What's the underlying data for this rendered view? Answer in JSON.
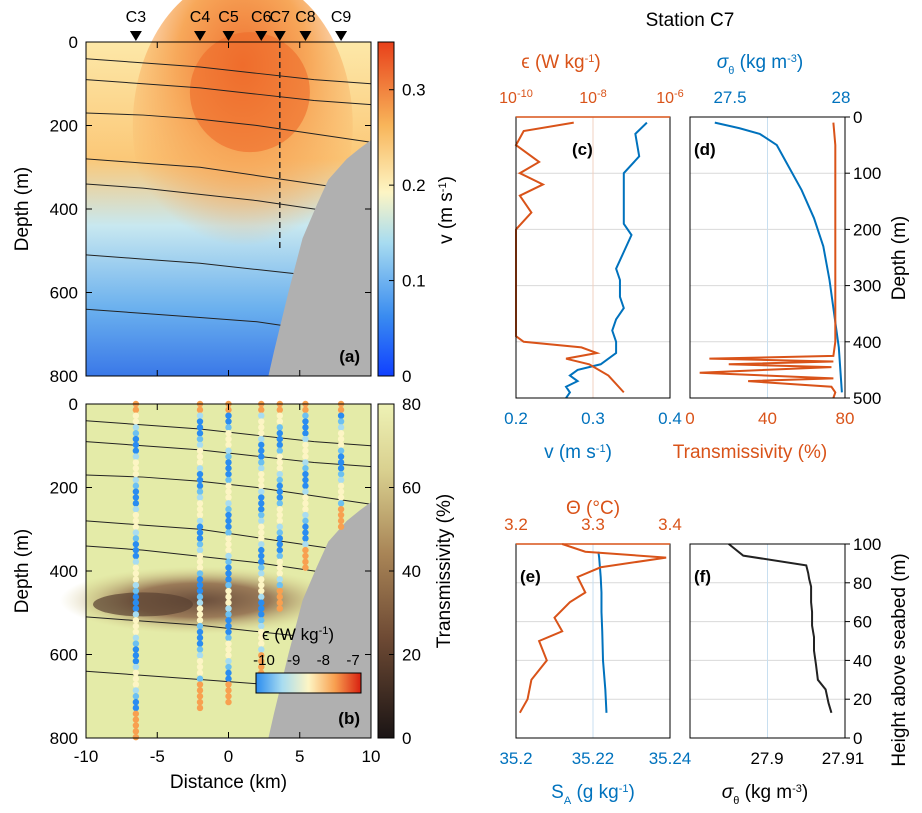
{
  "colors": {
    "orange": "#d95319",
    "blue": "#0072bd",
    "black": "#222222",
    "seabed": "#b0b0b0",
    "grid": "#d9d9d9"
  },
  "stations": [
    "C3",
    "C4",
    "C5",
    "C6",
    "C7",
    "C8",
    "C9"
  ],
  "station_title": "Station C7",
  "chart_data": [
    {
      "id": "a",
      "panel_label": "(a)",
      "type": "heatmap",
      "xlabel": "",
      "ylabel": "Depth (m)",
      "xlim": [
        -10,
        10
      ],
      "ylim": [
        0,
        800
      ],
      "yticks": [
        "0",
        "200",
        "400",
        "600",
        "800"
      ],
      "colorbar": {
        "label": "v (m s",
        "sup": "-1",
        "label_end": ")",
        "range": [
          0,
          0.35
        ],
        "ticks": [
          "0",
          "0.1",
          "0.2",
          "0.3"
        ]
      },
      "station_x_km": [
        -6.5,
        -2,
        0,
        2.3,
        3.6,
        5.4,
        7.9
      ]
    },
    {
      "id": "b",
      "panel_label": "(b)",
      "type": "heatmap",
      "xlabel": "Distance (km)",
      "ylabel": "Depth (m)",
      "xlim": [
        -10,
        10
      ],
      "ylim": [
        0,
        800
      ],
      "xticks": [
        "-10",
        "-5",
        "0",
        "5",
        "10"
      ],
      "yticks": [
        "0",
        "200",
        "400",
        "600",
        "800"
      ],
      "colorbar": {
        "label": "Transmissivity (%)",
        "range": [
          0,
          80
        ],
        "ticks": [
          "0",
          "20",
          "40",
          "60",
          "80"
        ]
      },
      "epsilon_bar": {
        "label": "ϵ (W kg",
        "sup": "-1",
        "label_end": ")",
        "ticks": [
          "-10",
          "-9",
          "-8",
          "-7"
        ],
        "range": [
          -10,
          -7
        ]
      }
    },
    {
      "id": "c",
      "panel_label": "(c)",
      "type": "line",
      "top_label": "ϵ (W kg",
      "top_sup": "-1",
      "top_end": ")",
      "top_ticks": [
        "10",
        "10",
        "10"
      ],
      "top_tick_exp": [
        "-10",
        "-8",
        "-6"
      ],
      "bottom_label": "v (m s",
      "bottom_sup": "-1",
      "bottom_end": ")",
      "bottom_ticks": [
        "0.2",
        "0.3",
        "0.4"
      ],
      "xlim": [
        0.2,
        0.4
      ],
      "ylim": [
        0,
        500
      ],
      "series": [
        {
          "axis": "v",
          "x": [
            0.37,
            0.355,
            0.36,
            0.34,
            0.34,
            0.34,
            0.34,
            0.35,
            0.34,
            0.33,
            0.335,
            0.335,
            0.34,
            0.33,
            0.325,
            0.33,
            0.33,
            0.31,
            0.28,
            0.27,
            0.28,
            0.265,
            0.27,
            0.265
          ],
          "y": [
            10,
            30,
            70,
            100,
            130,
            160,
            190,
            210,
            240,
            270,
            290,
            320,
            340,
            360,
            380,
            400,
            420,
            440,
            450,
            460,
            470,
            480,
            490,
            500
          ]
        },
        {
          "axis": "eps_log10",
          "x": [
            -8.5,
            -9.8,
            -10,
            -9.4,
            -9.9,
            -9.3,
            -9.9,
            -9.6,
            -10,
            -10,
            -10,
            -10,
            -10,
            -10,
            -10,
            -10,
            -9.8,
            -8.3,
            -7.9,
            -8.7,
            -8.1,
            -7.6,
            -7.2
          ],
          "y": [
            10,
            25,
            50,
            80,
            100,
            120,
            140,
            170,
            200,
            240,
            270,
            300,
            330,
            360,
            380,
            390,
            400,
            410,
            420,
            430,
            440,
            460,
            490
          ]
        }
      ]
    },
    {
      "id": "d",
      "panel_label": "(d)",
      "type": "line",
      "title": "Station C7",
      "top_label": "σ",
      "top_sub": "θ",
      "top_end": " (kg m",
      "top_sup": "-3",
      "top_close": ")",
      "top_ticks": [
        "27.5",
        "28"
      ],
      "bottom_label": "Transmissivity (%)",
      "bottom_ticks": [
        "0",
        "40",
        "80"
      ],
      "right_label": "Depth (m)",
      "right_ticks": [
        "0",
        "100",
        "200",
        "300",
        "400",
        "500"
      ],
      "xlim": [
        0,
        80
      ],
      "ylim": [
        0,
        500
      ],
      "series": [
        {
          "axis": "sigma",
          "x": [
            27.16,
            27.32,
            27.45,
            27.56,
            27.62,
            27.72,
            27.8,
            27.86,
            27.9,
            27.93,
            27.96,
            27.98
          ],
          "y": [
            10,
            20,
            30,
            50,
            80,
            130,
            180,
            230,
            290,
            350,
            410,
            490
          ]
        },
        {
          "axis": "trans",
          "x": [
            74,
            75,
            75,
            75,
            75,
            75,
            74,
            10,
            74,
            20,
            73,
            5,
            74,
            30,
            73,
            75,
            74
          ],
          "y": [
            10,
            50,
            150,
            250,
            350,
            400,
            425,
            430,
            435,
            440,
            445,
            455,
            465,
            470,
            480,
            490,
            500
          ]
        }
      ]
    },
    {
      "id": "e",
      "panel_label": "(e)",
      "type": "line",
      "top_label": "Θ (°C)",
      "top_ticks": [
        "3.2",
        "3.3",
        "3.4"
      ],
      "bottom_label": "S",
      "bottom_sub": "A",
      "bottom_end": " (g kg",
      "bottom_sup": "-1",
      "bottom_close": ")",
      "bottom_ticks": [
        "35.2",
        "35.22",
        "35.24"
      ],
      "xlim": [
        35.2,
        35.24
      ],
      "ylim": [
        0,
        100
      ],
      "series": [
        {
          "axis": "SA",
          "x": [
            35.2235,
            35.2232,
            35.2226,
            35.2224,
            35.2222,
            35.2222,
            35.222,
            35.2218,
            35.2216,
            35.2214
          ],
          "y": [
            13,
            25,
            40,
            55,
            65,
            75,
            83,
            88,
            93,
            96
          ]
        },
        {
          "axis": "theta",
          "x": [
            3.205,
            3.215,
            3.22,
            3.24,
            3.23,
            3.26,
            3.25,
            3.27,
            3.29,
            3.28,
            3.31,
            3.395,
            3.29,
            3.26
          ],
          "y": [
            13,
            20,
            30,
            40,
            50,
            55,
            62,
            70,
            75,
            83,
            88,
            93,
            96,
            100
          ]
        }
      ]
    },
    {
      "id": "f",
      "panel_label": "(f)",
      "type": "line",
      "bottom_label": "σ",
      "bottom_sub": "θ",
      "bottom_end": " (kg m",
      "bottom_sup": "-3",
      "bottom_close": ")",
      "bottom_ticks": [
        "27.9",
        "27.91"
      ],
      "right_label": "Height above seabed (m)",
      "right_ticks": [
        "0",
        "20",
        "40",
        "60",
        "80",
        "100"
      ],
      "xlim": [
        27.895,
        27.91
      ],
      "ylim": [
        0,
        100
      ],
      "series": [
        {
          "axis": "sigma",
          "x": [
            27.9096,
            27.9093,
            27.909,
            27.9082,
            27.908,
            27.9078,
            27.9078,
            27.9076,
            27.9076,
            27.9075,
            27.9075,
            27.9073,
            27.9072,
            27.907,
            27.9005,
            27.899
          ],
          "y": [
            13,
            18,
            25,
            30,
            38,
            45,
            52,
            58,
            65,
            70,
            78,
            82,
            85,
            89,
            94,
            100
          ]
        }
      ]
    }
  ]
}
